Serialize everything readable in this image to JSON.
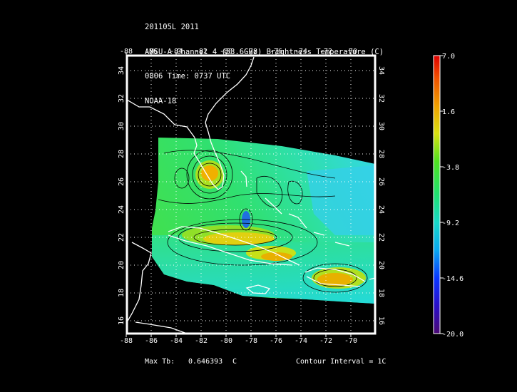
{
  "header": {
    "line1": "201105L 2011",
    "line2": "AMSU-A Channel 4 (53.6GHz) Brightness Temperature (C)",
    "line3": "0806 Time: 0737 UTC",
    "line4": "NOAA-18"
  },
  "map": {
    "lon_ticks": [
      "-88",
      "-86",
      "-84",
      "-82",
      "-80",
      "-78",
      "-76",
      "-74",
      "-72",
      "-70"
    ],
    "lat_ticks": [
      "34",
      "32",
      "30",
      "28",
      "26",
      "24",
      "22",
      "20",
      "18",
      "16"
    ],
    "lon_range": [
      -88,
      -68
    ],
    "lat_range": [
      15,
      35
    ]
  },
  "colorbar": {
    "labels": [
      "7.0",
      "1.6",
      "-3.8",
      "-9.2",
      "-14.6",
      "-20.0"
    ],
    "min": -20.0,
    "max": 7.0
  },
  "footer": {
    "max_label": "Max Tb:",
    "max_value": "0.646393",
    "max_unit": "C",
    "contour": "Contour Interval = 1C"
  },
  "colors": {
    "background": "#000000",
    "coast": "#ffffff",
    "contour": "#000000"
  }
}
